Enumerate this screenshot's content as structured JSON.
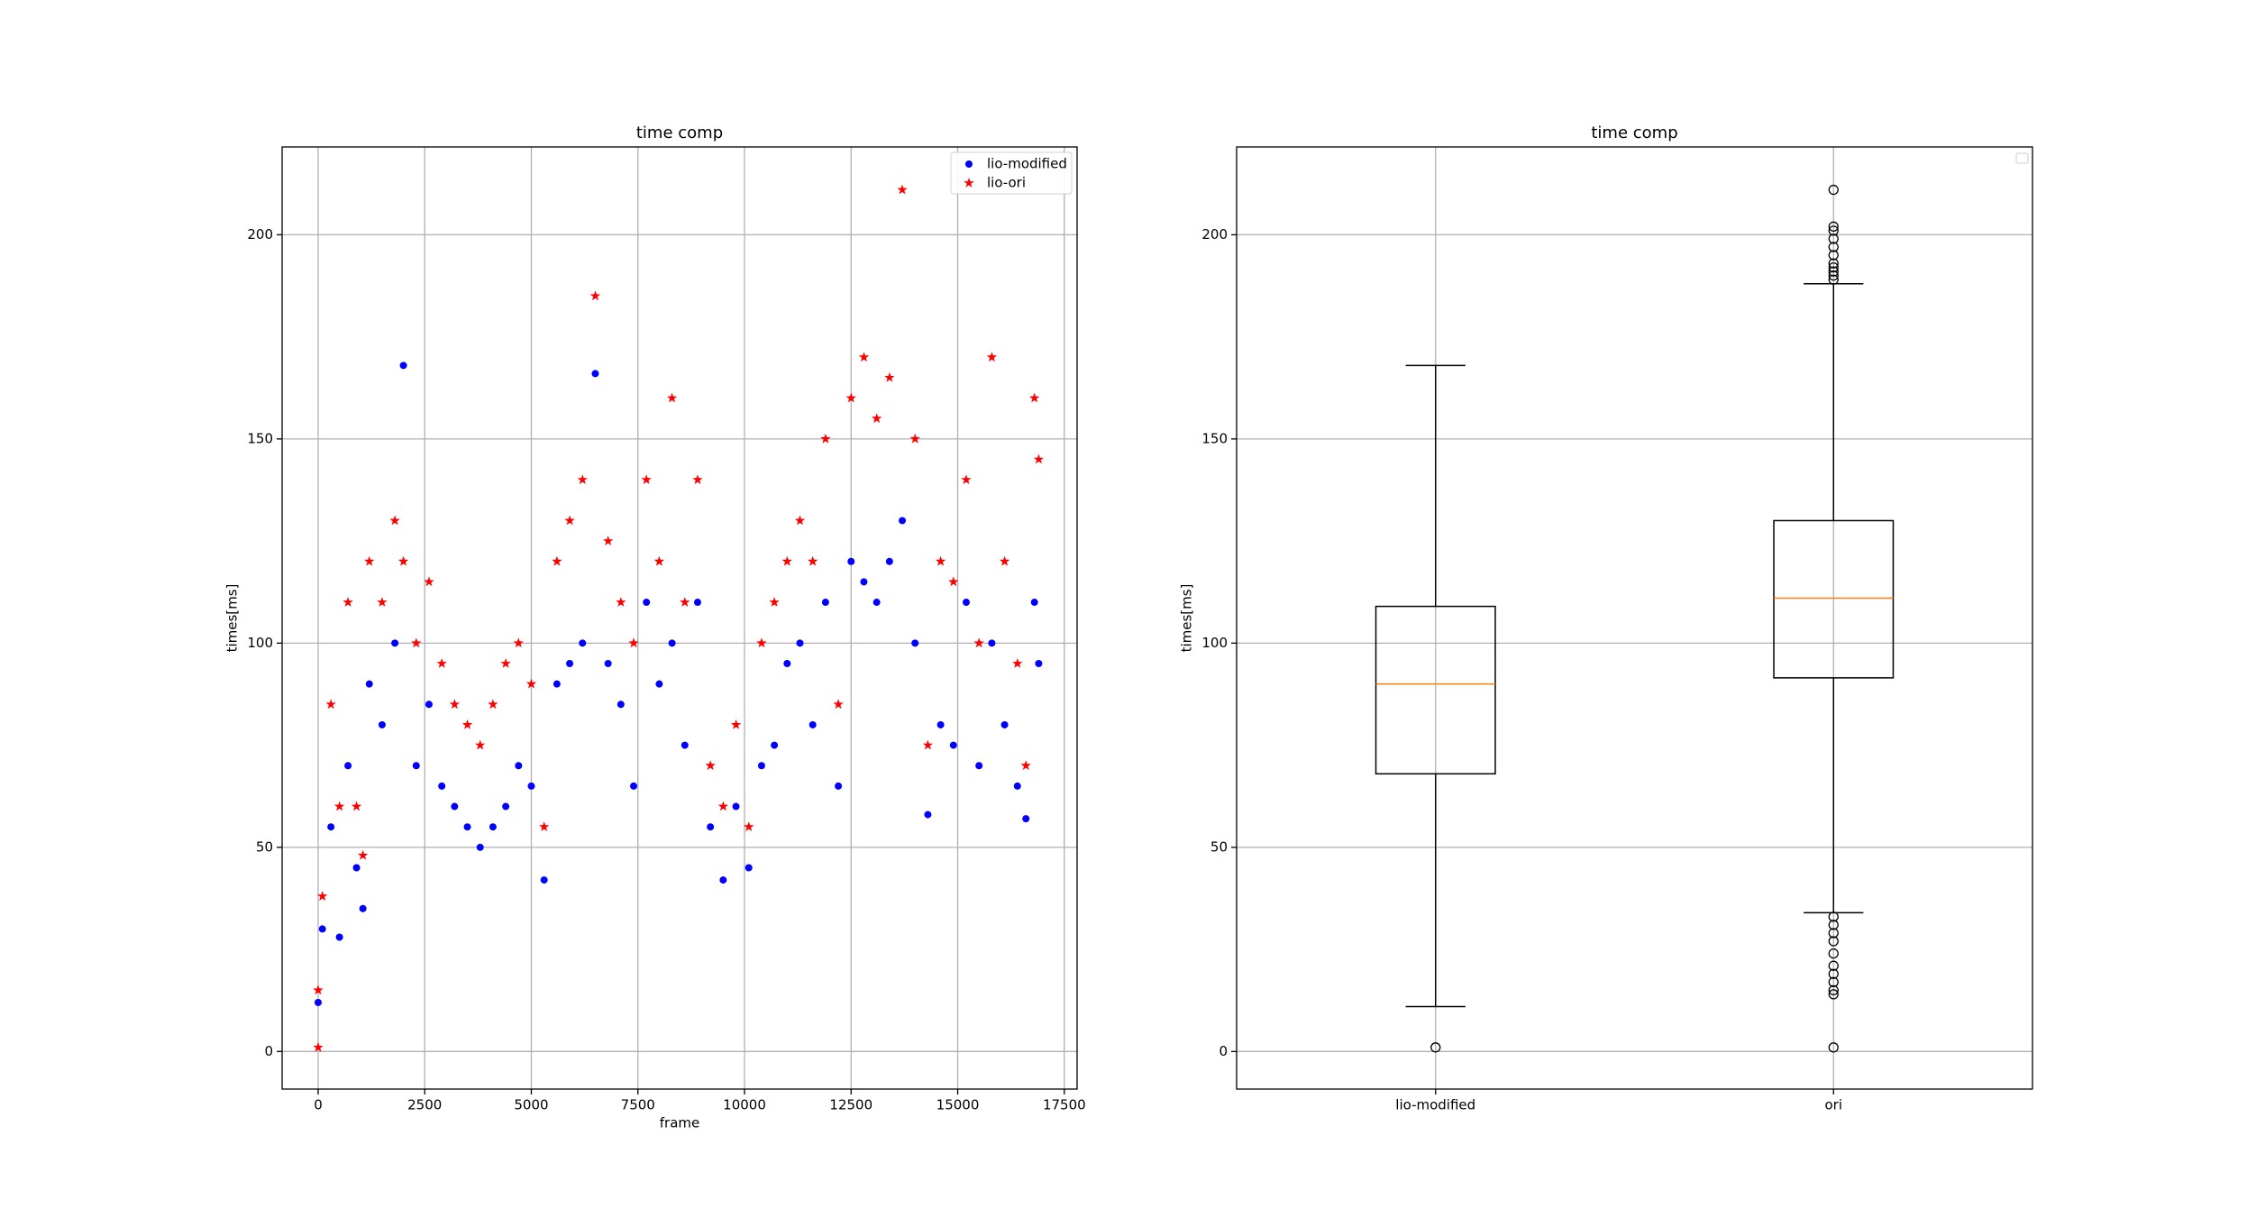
{
  "chart_data": [
    {
      "type": "scatter",
      "title": "time comp",
      "x_label": "frame",
      "y_label": "times[ms]",
      "xlim": [
        -845,
        17800
      ],
      "ylim": [
        -9.2,
        221.5
      ],
      "xticks": [
        0,
        2500,
        5000,
        7500,
        10000,
        12500,
        15000,
        17500
      ],
      "yticks": [
        0,
        50,
        100,
        150,
        200
      ],
      "grid": true,
      "legend": "upper right",
      "series": [
        {
          "name": "lio-modified",
          "color": "#0000ff",
          "marker": "circle",
          "x": [
            0,
            100,
            300,
            500,
            700,
            900,
            1050,
            1200,
            1500,
            1800,
            2000,
            2300,
            2600,
            2900,
            3200,
            3500,
            3800,
            4100,
            4400,
            4700,
            5000,
            5300,
            5600,
            5900,
            6200,
            6500,
            6800,
            7100,
            7400,
            7700,
            8000,
            8300,
            8600,
            8900,
            9200,
            9500,
            9800,
            10100,
            10400,
            10700,
            11000,
            11300,
            11600,
            11900,
            12200,
            12500,
            12800,
            13100,
            13400,
            13700,
            14000,
            14300,
            14600,
            14900,
            15200,
            15500,
            15800,
            16100,
            16400,
            16600,
            16800,
            16900
          ],
          "values": [
            12,
            30,
            55,
            28,
            70,
            45,
            35,
            90,
            80,
            100,
            168,
            70,
            85,
            65,
            60,
            55,
            50,
            55,
            60,
            70,
            65,
            42,
            90,
            95,
            100,
            166,
            95,
            85,
            65,
            110,
            90,
            100,
            75,
            110,
            55,
            42,
            60,
            45,
            70,
            75,
            95,
            100,
            80,
            110,
            65,
            120,
            115,
            110,
            120,
            130,
            100,
            58,
            80,
            75,
            110,
            70,
            100,
            80,
            65,
            57,
            110,
            95
          ]
        },
        {
          "name": "lio-ori",
          "color": "#ff0000",
          "marker": "star",
          "x": [
            0,
            0,
            100,
            300,
            500,
            700,
            900,
            1050,
            1200,
            1500,
            1800,
            2000,
            2300,
            2600,
            2900,
            3200,
            3500,
            3800,
            4100,
            4400,
            4700,
            5000,
            5300,
            5600,
            5900,
            6200,
            6500,
            6800,
            7100,
            7400,
            7700,
            8000,
            8300,
            8600,
            8900,
            9200,
            9500,
            9800,
            10100,
            10400,
            10700,
            11000,
            11300,
            11600,
            11900,
            12200,
            12500,
            12800,
            13100,
            13400,
            13700,
            14000,
            14300,
            14600,
            14900,
            15200,
            15500,
            15800,
            16100,
            16400,
            16600,
            16800,
            16900
          ],
          "values": [
            1,
            15,
            38,
            85,
            60,
            110,
            60,
            48,
            120,
            110,
            130,
            120,
            100,
            115,
            95,
            85,
            80,
            75,
            85,
            95,
            100,
            90,
            55,
            120,
            130,
            140,
            185,
            125,
            110,
            100,
            140,
            120,
            160,
            110,
            140,
            70,
            60,
            80,
            55,
            100,
            110,
            120,
            130,
            120,
            150,
            85,
            160,
            170,
            155,
            165,
            211,
            150,
            75,
            120,
            115,
            140,
            100,
            170,
            120,
            95,
            70,
            160,
            145
          ]
        }
      ]
    },
    {
      "type": "box",
      "title": "time comp",
      "y_label": "times[ms]",
      "xlim": [
        0.5,
        2.5
      ],
      "ylim": [
        -9.2,
        221.5
      ],
      "yticks": [
        0,
        50,
        100,
        150,
        200
      ],
      "grid": true,
      "categories": [
        "lio-modified",
        "ori"
      ],
      "box_color": "#000000",
      "median_color": "#ff7f0e",
      "boxes": [
        {
          "whislo": 11,
          "q1": 68,
          "med": 90,
          "q3": 109,
          "whishi": 168,
          "fliers": [
            1
          ]
        },
        {
          "whislo": 34,
          "q1": 91.5,
          "med": 111,
          "q3": 130,
          "whishi": 188,
          "fliers": [
            1,
            14,
            15,
            17,
            19,
            21,
            24,
            27,
            29,
            31,
            33,
            189,
            190,
            191,
            192,
            193,
            195,
            197,
            199,
            201,
            202,
            211
          ]
        }
      ]
    }
  ]
}
